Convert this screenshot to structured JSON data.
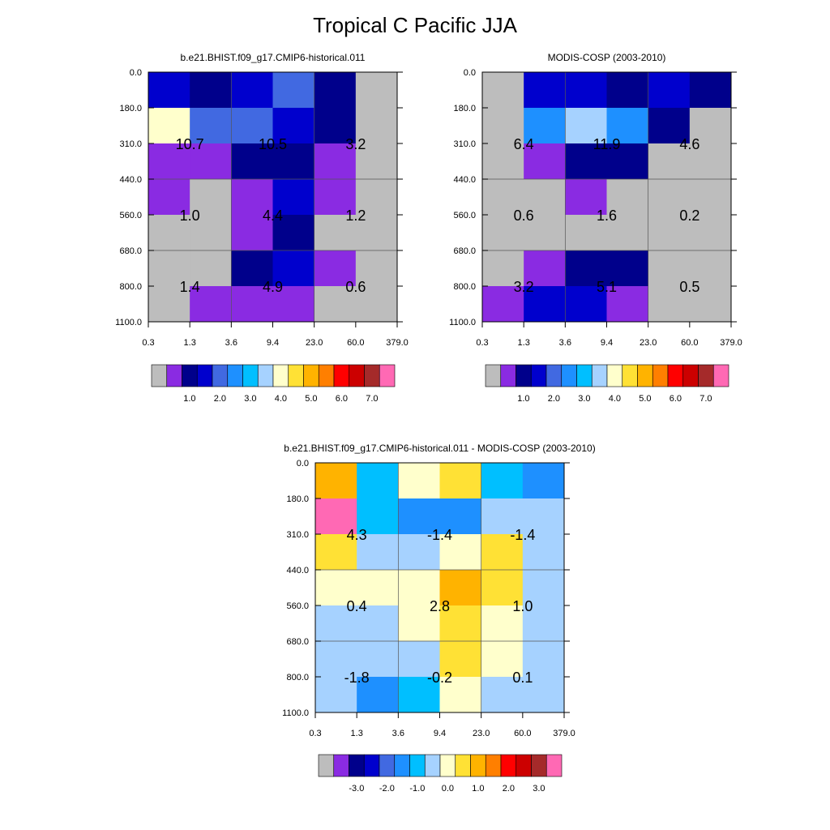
{
  "title": "Tropical C Pacific JJA",
  "palette": {
    "abs": [
      "#bdbdbd",
      "#8a2be2",
      "#00008b",
      "#0000cd",
      "#4169e1",
      "#1e90ff",
      "#00bfff",
      "#a6d2ff",
      "#ffffcc",
      "#ffe135",
      "#ffb300",
      "#ff7f00",
      "#ff0000",
      "#cc0000",
      "#a52a2a",
      "#ff69b4"
    ],
    "diff": [
      "#bdbdbd",
      "#8a2be2",
      "#00008b",
      "#0000cd",
      "#4169e1",
      "#1e90ff",
      "#00bfff",
      "#a6d2ff",
      "#ffffcc",
      "#ffe135",
      "#ffb300",
      "#ff7f00",
      "#ff0000",
      "#cc0000",
      "#a52a2a",
      "#ff69b4"
    ]
  },
  "chart_data": [
    {
      "type": "heatmap",
      "title": "b.e21.BHIST.f09_g17.CMIP6-historical.011",
      "x_ticks": [
        "0.3",
        "1.3",
        "3.6",
        "9.4",
        "23.0",
        "60.0",
        "379.0"
      ],
      "y_ticks": [
        "0.0",
        "180.0",
        "310.0",
        "440.0",
        "560.0",
        "680.0",
        "800.0",
        "1100.0"
      ],
      "colorbar_labels": [
        "1.0",
        "2.0",
        "3.0",
        "4.0",
        "5.0",
        "6.0",
        "7.0"
      ],
      "color_index_grid": [
        [
          3,
          2,
          3,
          4,
          2,
          0
        ],
        [
          8,
          4,
          4,
          3,
          2,
          0
        ],
        [
          1,
          1,
          2,
          2,
          1,
          0
        ],
        [
          1,
          0,
          1,
          3,
          1,
          0
        ],
        [
          0,
          0,
          1,
          2,
          0,
          0
        ],
        [
          0,
          0,
          2,
          3,
          1,
          0
        ],
        [
          0,
          1,
          1,
          1,
          0,
          0
        ]
      ],
      "summary_values": [
        [
          "10.7",
          "10.5",
          "3.2"
        ],
        [
          "1.0",
          "4.4",
          "1.2"
        ],
        [
          "1.4",
          "4.9",
          "0.6"
        ]
      ]
    },
    {
      "type": "heatmap",
      "title": "MODIS-COSP (2003-2010)",
      "x_ticks": [
        "0.3",
        "1.3",
        "3.6",
        "9.4",
        "23.0",
        "60.0",
        "379.0"
      ],
      "y_ticks": [
        "0.0",
        "180.0",
        "310.0",
        "440.0",
        "560.0",
        "680.0",
        "800.0",
        "1100.0"
      ],
      "colorbar_labels": [
        "1.0",
        "2.0",
        "3.0",
        "4.0",
        "5.0",
        "6.0",
        "7.0"
      ],
      "color_index_grid": [
        [
          0,
          3,
          3,
          2,
          3,
          2
        ],
        [
          0,
          5,
          7,
          5,
          2,
          0
        ],
        [
          0,
          1,
          2,
          2,
          0,
          0
        ],
        [
          0,
          0,
          1,
          0,
          0,
          0
        ],
        [
          0,
          0,
          0,
          0,
          0,
          0
        ],
        [
          0,
          1,
          2,
          2,
          0,
          0
        ],
        [
          1,
          3,
          3,
          1,
          0,
          0
        ]
      ],
      "summary_values": [
        [
          "6.4",
          "11.9",
          "4.6"
        ],
        [
          "0.6",
          "1.6",
          "0.2"
        ],
        [
          "3.2",
          "5.1",
          "0.5"
        ]
      ]
    },
    {
      "type": "heatmap",
      "title": "b.e21.BHIST.f09_g17.CMIP6-historical.011 - MODIS-COSP (2003-2010)",
      "x_ticks": [
        "0.3",
        "1.3",
        "3.6",
        "9.4",
        "23.0",
        "60.0",
        "379.0"
      ],
      "y_ticks": [
        "0.0",
        "180.0",
        "310.0",
        "440.0",
        "560.0",
        "680.0",
        "800.0",
        "1100.0"
      ],
      "colorbar_labels": [
        "-3.0",
        "-2.0",
        "-1.0",
        "0.0",
        "1.0",
        "2.0",
        "3.0"
      ],
      "color_index_grid": [
        [
          10,
          6,
          8,
          9,
          6,
          5
        ],
        [
          15,
          6,
          5,
          5,
          7,
          7
        ],
        [
          9,
          7,
          7,
          8,
          9,
          7
        ],
        [
          8,
          8,
          8,
          10,
          9,
          7
        ],
        [
          7,
          7,
          8,
          9,
          8,
          7
        ],
        [
          7,
          7,
          7,
          9,
          8,
          7
        ],
        [
          7,
          5,
          6,
          8,
          7,
          7
        ]
      ],
      "summary_values": [
        [
          "4.3",
          "-1.4",
          "-1.4"
        ],
        [
          "0.4",
          "2.8",
          "1.0"
        ],
        [
          "-1.8",
          "-0.2",
          "0.1"
        ]
      ]
    }
  ]
}
